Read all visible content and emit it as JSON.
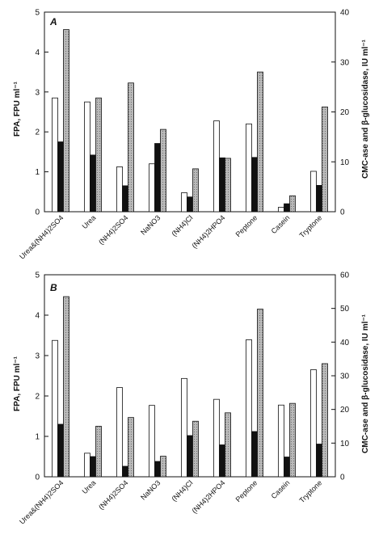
{
  "chart_data": [
    {
      "type": "bar",
      "panel": "A",
      "categories": [
        "Urea&(NH4)2SO4",
        "Urea",
        "(NH4)2SO4",
        "NaNO3",
        "(NH4)Cl",
        "(NH4)2HPO4",
        "Peptone",
        "Casein",
        "Tryptone"
      ],
      "series": [
        {
          "axis": "right",
          "fill": "white",
          "values": [
            22.8,
            22,
            9,
            9.6,
            3.8,
            18.2,
            17.6,
            0.9,
            8.1
          ]
        },
        {
          "axis": "left",
          "fill": "black",
          "values": [
            1.75,
            1.42,
            0.65,
            1.71,
            0.37,
            1.35,
            1.36,
            0.2,
            0.66
          ]
        },
        {
          "axis": "right",
          "fill": "gray",
          "values": [
            36.5,
            22.8,
            25.8,
            16.5,
            8.6,
            10.7,
            28,
            3.2,
            21
          ]
        }
      ],
      "ylabel": "FPA, FPU ml⁻¹",
      "ylim": [
        0,
        5
      ],
      "yticks": [
        "0",
        "1",
        "2",
        "3",
        "4",
        "5"
      ],
      "y2label": "CMC-ase and β-glucosidase, IU ml⁻¹",
      "y2lim": [
        0,
        40
      ],
      "y2ticks": [
        "0",
        "10",
        "20",
        "30",
        "40"
      ]
    },
    {
      "type": "bar",
      "panel": "B",
      "categories": [
        "Urea&(NH4)2SO4",
        "Urea",
        "(NH4)2SO4",
        "NaNO3",
        "(NH4)Cl",
        "(NH4)2HPO4",
        "Peptone",
        "Casein",
        "Tryptone"
      ],
      "series": [
        {
          "axis": "right",
          "fill": "white",
          "values": [
            40.5,
            7,
            26.5,
            21.2,
            29.2,
            23,
            40.7,
            21.3,
            31.8
          ]
        },
        {
          "axis": "left",
          "fill": "black",
          "values": [
            1.3,
            0.5,
            0.26,
            0.38,
            1.02,
            0.79,
            1.12,
            0.49,
            0.81
          ]
        },
        {
          "axis": "right",
          "fill": "gray",
          "values": [
            53.5,
            15,
            17.6,
            6.1,
            16.5,
            19,
            49.8,
            21.8,
            33.6
          ]
        }
      ],
      "ylabel": "FPA, FPU ml⁻¹",
      "ylim": [
        0,
        5
      ],
      "yticks": [
        "0",
        "1",
        "2",
        "3",
        "4",
        "5"
      ],
      "y2label": "CMC-ase and β-glucosidase, IU ml⁻¹",
      "y2lim": [
        0,
        60
      ],
      "y2ticks": [
        "0",
        "10",
        "20",
        "30",
        "40",
        "50",
        "60"
      ]
    }
  ],
  "colors": {
    "white_bar": "#ffffff",
    "black_bar": "#111111",
    "gray_bar": "#a8a8a8",
    "axis": "#111111"
  }
}
